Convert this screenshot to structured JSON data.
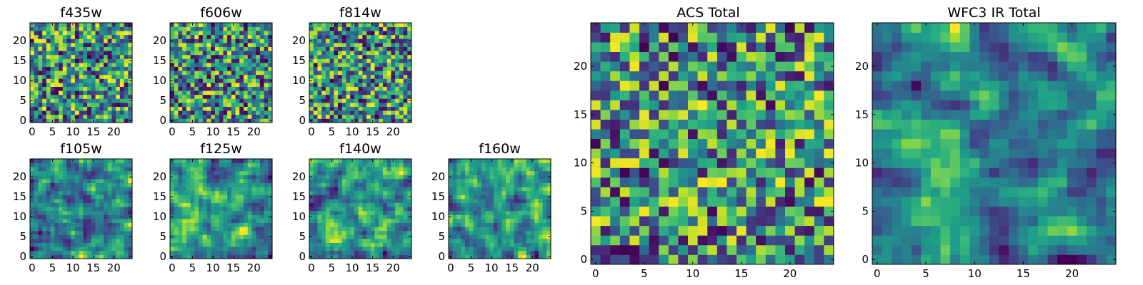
{
  "chart_data": [
    {
      "type": "heatmap",
      "title": "f435w",
      "size": 25,
      "colormap": "viridis",
      "xlim": [
        0,
        24
      ],
      "ylim": [
        0,
        24
      ],
      "xticks": [
        0,
        5,
        10,
        15,
        20
      ],
      "yticks": [
        0,
        5,
        10,
        15,
        20
      ],
      "texture": "noise",
      "seed": 11,
      "values": []
    },
    {
      "type": "heatmap",
      "title": "f606w",
      "size": 25,
      "colormap": "viridis",
      "xlim": [
        0,
        24
      ],
      "ylim": [
        0,
        24
      ],
      "xticks": [
        0,
        5,
        10,
        15,
        20
      ],
      "yticks": [
        0,
        5,
        10,
        15,
        20
      ],
      "texture": "noise",
      "seed": 23,
      "values": []
    },
    {
      "type": "heatmap",
      "title": "f814w",
      "size": 25,
      "colormap": "viridis",
      "xlim": [
        0,
        24
      ],
      "ylim": [
        0,
        24
      ],
      "xticks": [
        0,
        5,
        10,
        15,
        20
      ],
      "yticks": [
        0,
        5,
        10,
        15,
        20
      ],
      "texture": "noise",
      "seed": 37,
      "values": []
    },
    {
      "type": "heatmap",
      "title": "f105w",
      "size": 25,
      "colormap": "viridis",
      "xlim": [
        0,
        24
      ],
      "ylim": [
        0,
        24
      ],
      "xticks": [
        0,
        5,
        10,
        15,
        20
      ],
      "yticks": [
        0,
        5,
        10,
        15,
        20
      ],
      "texture": "smooth",
      "seed": 41,
      "values": []
    },
    {
      "type": "heatmap",
      "title": "f125w",
      "size": 25,
      "colormap": "viridis",
      "xlim": [
        0,
        24
      ],
      "ylim": [
        0,
        24
      ],
      "xticks": [
        0,
        5,
        10,
        15,
        20
      ],
      "yticks": [
        0,
        5,
        10,
        15,
        20
      ],
      "texture": "smooth",
      "seed": 53,
      "values": []
    },
    {
      "type": "heatmap",
      "title": "f140w",
      "size": 25,
      "colormap": "viridis",
      "xlim": [
        0,
        24
      ],
      "ylim": [
        0,
        24
      ],
      "xticks": [
        0,
        5,
        10,
        15,
        20
      ],
      "yticks": [
        0,
        5,
        10,
        15,
        20
      ],
      "texture": "smooth",
      "seed": 67,
      "values": []
    },
    {
      "type": "heatmap",
      "title": "f160w",
      "size": 25,
      "colormap": "viridis",
      "xlim": [
        0,
        24
      ],
      "ylim": [
        0,
        24
      ],
      "xticks": [
        0,
        5,
        10,
        15,
        20
      ],
      "yticks": [
        0,
        5,
        10,
        15,
        20
      ],
      "texture": "smooth",
      "seed": 79,
      "values": []
    },
    {
      "type": "heatmap",
      "title": "ACS Total",
      "size": 25,
      "colormap": "viridis",
      "xlim": [
        0,
        24
      ],
      "ylim": [
        0,
        24
      ],
      "xticks": [
        0,
        5,
        10,
        15,
        20
      ],
      "yticks": [
        0,
        5,
        10,
        15,
        20
      ],
      "texture": "noise",
      "seed": 97,
      "values": []
    },
    {
      "type": "heatmap",
      "title": "WFC3 IR Total",
      "size": 25,
      "colormap": "viridis",
      "xlim": [
        0,
        24
      ],
      "ylim": [
        0,
        24
      ],
      "xticks": [
        0,
        5,
        10,
        15,
        20
      ],
      "yticks": [
        0,
        5,
        10,
        15,
        20
      ],
      "texture": "smooth",
      "seed": 101,
      "values": []
    }
  ]
}
